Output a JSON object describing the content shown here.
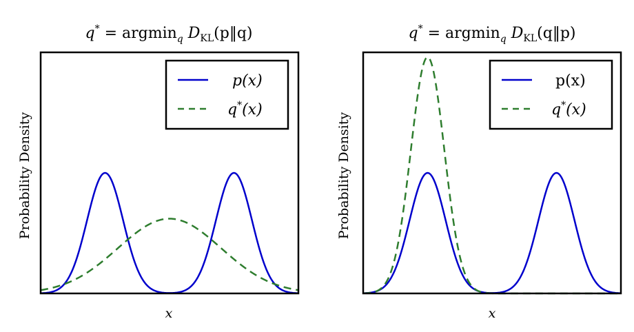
{
  "chart_data": [
    {
      "type": "line",
      "title": "q* = argmin_q D_KL(p‖q)",
      "title_parts": {
        "lhs": "q",
        "sup": "*",
        "eq": " = argmin",
        "sub": "q",
        "d": " D",
        "dsub": "KL",
        "args": "(p‖q)"
      },
      "xlabel": "x",
      "ylabel": "Probability Density",
      "xlim": [
        0,
        1
      ],
      "ylim": [
        0,
        1
      ],
      "grid": false,
      "legend_position": "top-right",
      "series": [
        {
          "name": "p(x)",
          "name_parts": {
            "base": "p(x)",
            "sup": ""
          },
          "style": "solid",
          "color": "#0000cc",
          "components": [
            {
              "mean": 0.25,
              "sd": 0.07,
              "peak": 0.5
            },
            {
              "mean": 0.75,
              "sd": 0.07,
              "peak": 0.5
            }
          ]
        },
        {
          "name": "q*(x)",
          "name_parts": {
            "base": "q",
            "sup": "*",
            "tail": "(x)"
          },
          "style": "dashed",
          "color": "#2e7d2e",
          "components": [
            {
              "mean": 0.5,
              "sd": 0.2,
              "peak": 0.31
            }
          ]
        }
      ]
    },
    {
      "type": "line",
      "title": "q* = argmin_q D_KL(q‖p)",
      "title_parts": {
        "lhs": "q",
        "sup": "*",
        "eq": " = argmin",
        "sub": "q",
        "d": " D",
        "dsub": "KL",
        "args": "(q‖p)"
      },
      "xlabel": "x",
      "ylabel": "Probability Density",
      "xlim": [
        0,
        1
      ],
      "ylim": [
        0,
        1
      ],
      "grid": false,
      "legend_position": "top-right",
      "series": [
        {
          "name": "p(x)",
          "name_parts": {
            "base": "p(x)",
            "sup": ""
          },
          "style": "solid",
          "color": "#0000cc",
          "components": [
            {
              "mean": 0.25,
              "sd": 0.07,
              "peak": 0.5
            },
            {
              "mean": 0.75,
              "sd": 0.07,
              "peak": 0.5
            }
          ]
        },
        {
          "name": "q*(x)",
          "name_parts": {
            "base": "q",
            "sup": "*",
            "tail": "(x)"
          },
          "style": "dashed",
          "color": "#2e7d2e",
          "components": [
            {
              "mean": 0.25,
              "sd": 0.065,
              "peak": 0.98
            }
          ]
        }
      ]
    }
  ]
}
